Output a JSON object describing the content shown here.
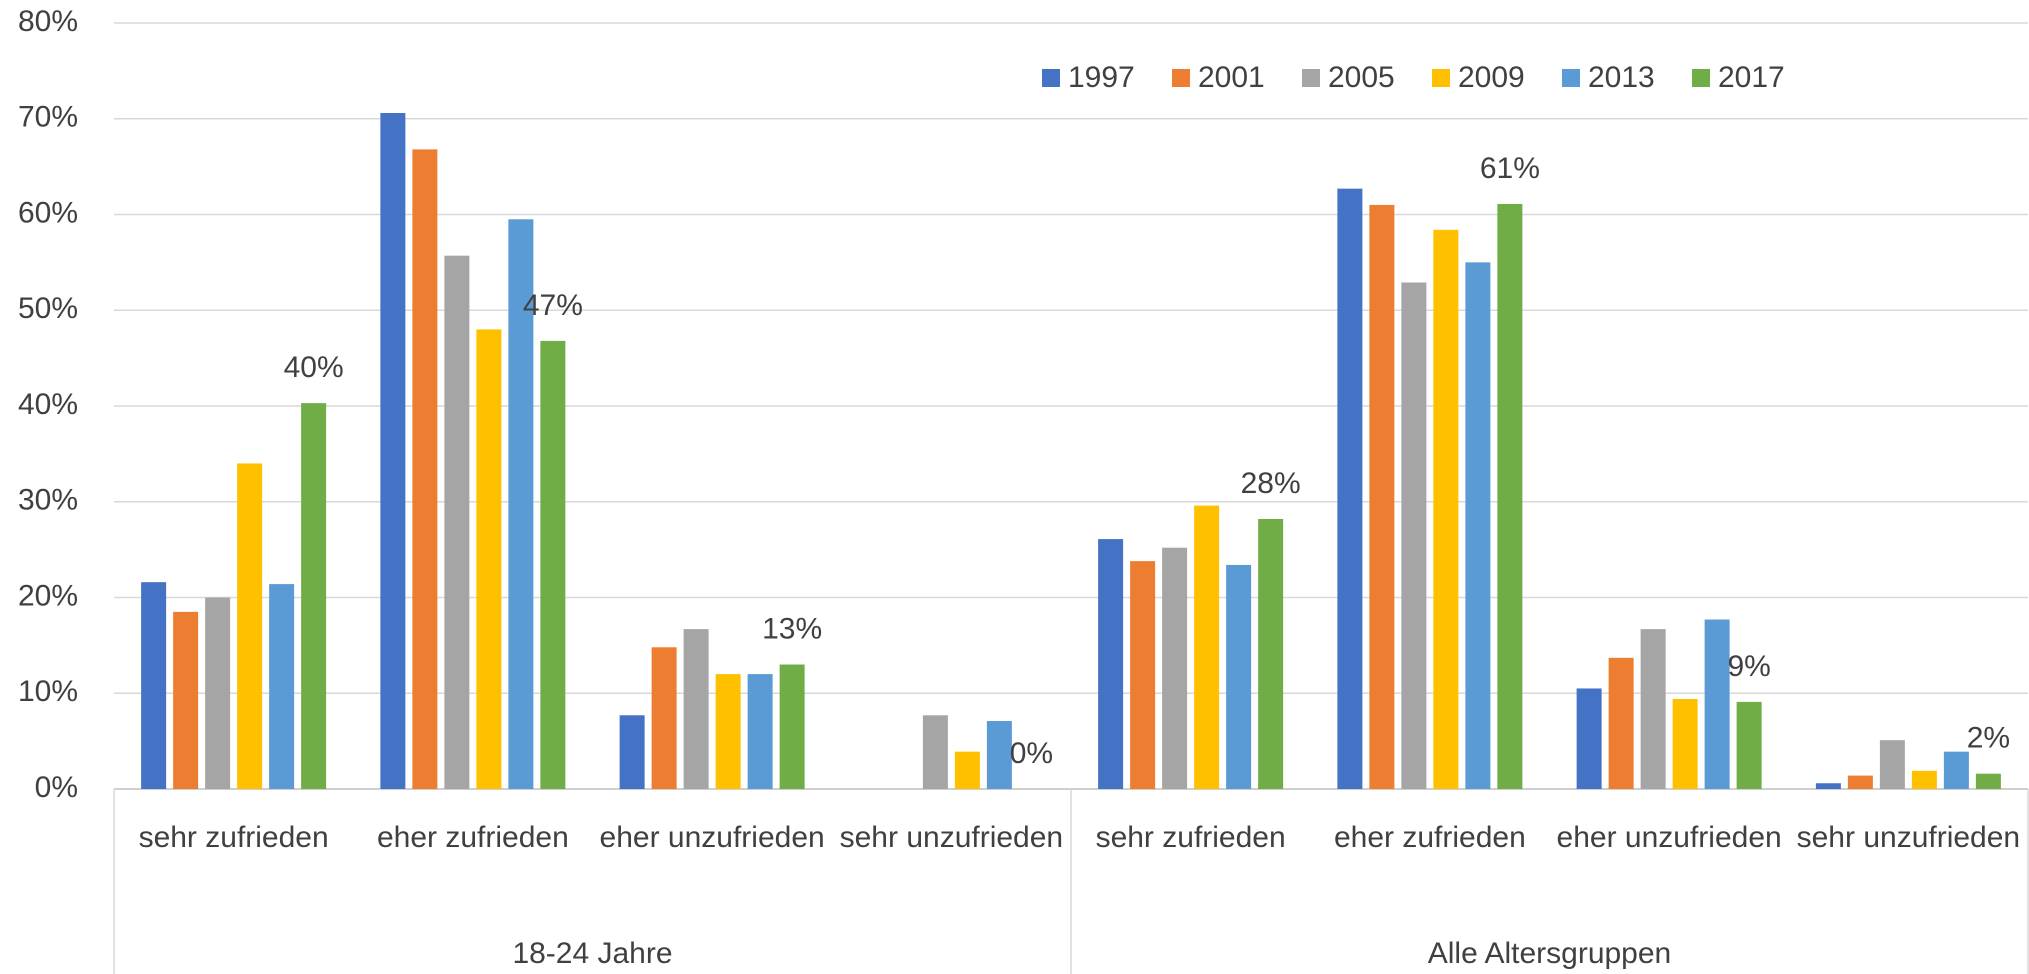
{
  "chart_data": {
    "type": "bar",
    "categories": [
      "sehr zufrieden",
      "eher zufrieden",
      "eher unzufrieden",
      "sehr unzufrieden",
      "sehr zufrieden",
      "eher zufrieden",
      "eher unzufrieden",
      "sehr unzufrieden"
    ],
    "groups": [
      {
        "label": "18-24 Jahre",
        "size": 4
      },
      {
        "label": "Alle Altersgruppen",
        "size": 4
      }
    ],
    "series": [
      {
        "name": "1997",
        "color": "#4472c4",
        "values": [
          21.6,
          70.6,
          7.7,
          0,
          26.1,
          62.7,
          10.5,
          0.6
        ]
      },
      {
        "name": "2001",
        "color": "#ed7d31",
        "values": [
          18.5,
          66.8,
          14.8,
          0,
          23.8,
          61.0,
          13.7,
          1.4
        ]
      },
      {
        "name": "2005",
        "color": "#a5a5a5",
        "values": [
          20.0,
          55.7,
          16.7,
          7.7,
          25.2,
          52.9,
          16.7,
          5.1
        ]
      },
      {
        "name": "2009",
        "color": "#ffc000",
        "values": [
          34.0,
          48.0,
          12.0,
          3.9,
          29.6,
          58.4,
          9.4,
          1.9
        ]
      },
      {
        "name": "2013",
        "color": "#5b9bd5",
        "values": [
          21.4,
          59.5,
          12.0,
          7.1,
          23.4,
          55.0,
          17.7,
          3.9
        ]
      },
      {
        "name": "2017",
        "color": "#70ad47",
        "values": [
          40.3,
          46.8,
          13.0,
          0,
          28.2,
          61.1,
          9.1,
          1.6
        ],
        "value_labels": [
          "40%",
          "47%",
          "13%",
          "0%",
          "28%",
          "61%",
          "9%",
          "2%"
        ]
      }
    ],
    "ylim": [
      0,
      80
    ],
    "yticks": [
      {
        "value": 0,
        "label": "0%"
      },
      {
        "value": 10,
        "label": "10%"
      },
      {
        "value": 20,
        "label": "20%"
      },
      {
        "value": 30,
        "label": "30%"
      },
      {
        "value": 40,
        "label": "40%"
      },
      {
        "value": 50,
        "label": "50%"
      },
      {
        "value": 60,
        "label": "60%"
      },
      {
        "value": 70,
        "label": "70%"
      },
      {
        "value": 80,
        "label": "80%"
      }
    ],
    "grid": true,
    "legend": "top-right"
  }
}
